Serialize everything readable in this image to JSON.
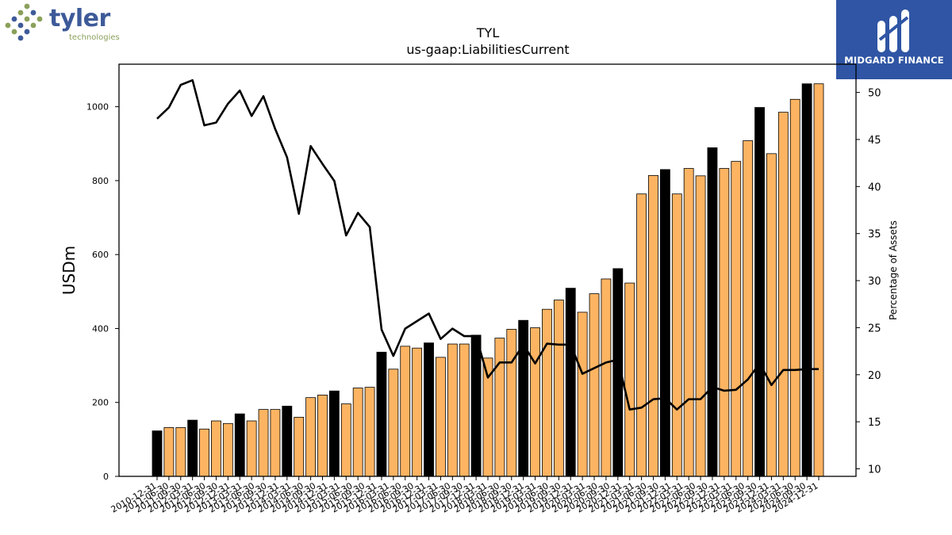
{
  "branding": {
    "tyler_word": "tyler",
    "tyler_sub": "technologies",
    "tyler_dot_colors": [
      "#8aa05a",
      "#3d5a99"
    ],
    "midgard_name": "MIDGARD FINANCE",
    "midgard_bg": "#2f55a4"
  },
  "chart_data": {
    "type": "bar",
    "title": "TYL",
    "subtitle": "us-gaap:LiabilitiesCurrent",
    "ylabel": "USDm",
    "y2label": "Percentage of Assets",
    "ylim": [
      0,
      1115
    ],
    "y2lim": [
      9.2,
      53.0
    ],
    "yticks": [
      0,
      200,
      400,
      600,
      800,
      1000
    ],
    "y2ticks": [
      10,
      15,
      20,
      25,
      30,
      35,
      40,
      45,
      50
    ],
    "grid": false,
    "colors": {
      "annual": "#000000",
      "quarterly": "#fdb462",
      "line": "#000000"
    },
    "categories": [
      "2010-12-31",
      "2011-03-31",
      "2011-06-30",
      "2011-09-30",
      "2011-12-31",
      "2012-03-31",
      "2012-06-30",
      "2012-09-30",
      "2012-12-31",
      "2013-03-31",
      "2013-06-30",
      "2013-09-30",
      "2013-12-31",
      "2014-03-31",
      "2014-06-30",
      "2014-09-30",
      "2014-12-31",
      "2015-03-31",
      "2015-06-30",
      "2015-09-30",
      "2015-12-31",
      "2016-03-31",
      "2016-06-30",
      "2016-09-30",
      "2016-12-31",
      "2017-03-31",
      "2017-06-30",
      "2017-09-30",
      "2017-12-31",
      "2018-03-31",
      "2018-06-30",
      "2018-09-30",
      "2018-12-31",
      "2019-03-31",
      "2019-06-30",
      "2019-09-30",
      "2019-12-31",
      "2020-03-31",
      "2020-06-30",
      "2020-09-30",
      "2020-12-31",
      "2021-03-31",
      "2021-06-30",
      "2021-09-30",
      "2021-12-31",
      "2022-03-31",
      "2022-06-30",
      "2022-09-30",
      "2022-12-31",
      "2023-03-31",
      "2023-06-30",
      "2023-09-30",
      "2023-12-31",
      "2024-03-31",
      "2024-06-30",
      "2024-09-30",
      "2024-12-31"
    ],
    "xtick_labels": [
      "2010-12-31",
      "2011-06-30",
      "2011-09-30",
      "2012-03-31",
      "2012-06-30",
      "2012-09-30",
      "2012-12-31",
      "2013-03-31",
      "2013-06-30",
      "2013-09-30",
      "2013-12-31",
      "2014-03-31",
      "2014-06-30",
      "2014-09-30",
      "2014-12-31",
      "2015-03-31",
      "2015-06-30",
      "2015-09-30",
      "2015-12-31",
      "2016-03-31",
      "2016-06-30",
      "2016-09-30",
      "2016-12-31",
      "2017-03-31",
      "2017-06-30",
      "2017-09-30",
      "2017-12-31",
      "2018-03-31",
      "2018-06-30",
      "2018-09-30",
      "2018-12-31",
      "2019-03-31",
      "2019-06-30",
      "2019-09-30",
      "2019-12-31",
      "2020-03-31",
      "2020-06-30",
      "2020-09-30",
      "2020-12-31",
      "2021-03-31",
      "2021-06-30",
      "2021-09-30",
      "2021-12-31",
      "2022-03-31",
      "2022-06-30",
      "2022-09-30",
      "2022-12-31",
      "2023-03-31",
      "2023-06-30",
      "2023-09-30",
      "2023-12-31",
      "2024-03-31",
      "2024-06-30",
      "2024-09-30",
      "2024-12-31"
    ],
    "annual_flags": [
      1,
      0,
      0,
      1,
      0,
      0,
      0,
      1,
      0,
      0,
      0,
      1,
      0,
      0,
      0,
      1,
      0,
      0,
      0,
      1,
      0,
      0,
      0,
      1,
      0,
      0,
      0,
      1,
      0,
      0,
      0,
      1,
      0,
      0,
      0,
      1,
      0,
      0,
      0,
      1,
      0,
      0,
      0,
      1,
      0,
      0,
      0,
      1,
      0,
      0,
      0,
      1,
      0,
      0,
      0,
      1,
      0
    ],
    "series": [
      {
        "name": "LiabilitiesCurrent",
        "type": "bar",
        "axis": "left",
        "values": [
          123,
          132,
          132,
          152,
          128,
          150,
          143,
          169,
          150,
          181,
          181,
          190,
          160,
          213,
          220,
          231,
          196,
          239,
          241,
          336,
          290,
          352,
          347,
          361,
          322,
          358,
          358,
          382,
          320,
          374,
          398,
          422,
          402,
          452,
          477,
          509,
          444,
          494,
          534,
          562,
          523,
          764,
          814,
          830,
          764,
          833,
          813,
          889,
          833,
          852,
          908,
          998,
          873,
          985,
          1020,
          1062,
          1062
        ]
      },
      {
        "name": "Percentage of Assets",
        "type": "line",
        "axis": "right",
        "values": [
          47.2,
          48.4,
          50.8,
          51.3,
          46.5,
          46.8,
          48.8,
          50.2,
          47.5,
          49.6,
          46.1,
          43.1,
          37.1,
          44.3,
          42.4,
          40.6,
          34.8,
          37.2,
          35.7,
          24.8,
          22.0,
          24.9,
          25.7,
          26.5,
          23.8,
          24.9,
          24.1,
          24.1,
          19.7,
          21.3,
          21.3,
          23.2,
          21.2,
          23.3,
          23.2,
          23.2,
          20.1,
          20.7,
          21.3,
          21.6,
          16.3,
          16.5,
          17.4,
          17.5,
          16.3,
          17.4,
          17.4,
          18.7,
          18.3,
          18.4,
          19.5,
          21.2,
          18.9,
          20.5,
          20.5,
          20.6,
          20.6
        ]
      }
    ]
  }
}
